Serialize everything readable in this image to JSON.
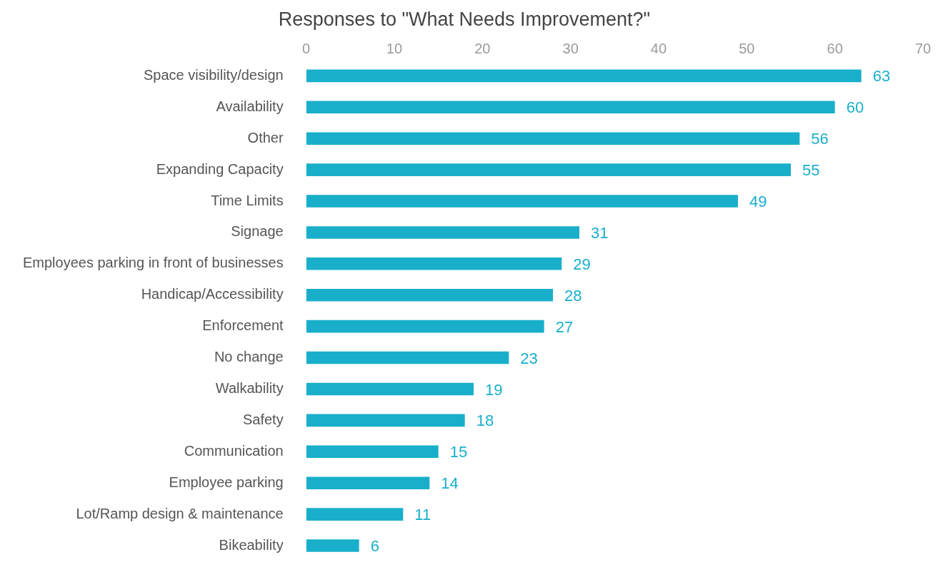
{
  "chart_data": {
    "type": "bar",
    "orientation": "horizontal",
    "title": "Responses to \"What Needs Improvement?\"",
    "categories": [
      "Space visibility/design",
      "Availability",
      "Other",
      "Expanding Capacity",
      "Time Limits",
      "Signage",
      "Employees parking in front of businesses",
      "Handicap/Accessibility",
      "Enforcement",
      "No change",
      "Walkability",
      "Safety",
      "Communication",
      "Employee parking",
      "Lot/Ramp design & maintenance",
      "Bikeability"
    ],
    "values": [
      63,
      60,
      56,
      55,
      49,
      31,
      29,
      28,
      27,
      23,
      19,
      18,
      15,
      14,
      11,
      6
    ],
    "color": "#19afcb",
    "xlim": [
      0,
      70
    ],
    "xticks": [
      0,
      10,
      20,
      30,
      40,
      50,
      60,
      70
    ],
    "grid": false,
    "legend": false,
    "data_labels": true
  }
}
